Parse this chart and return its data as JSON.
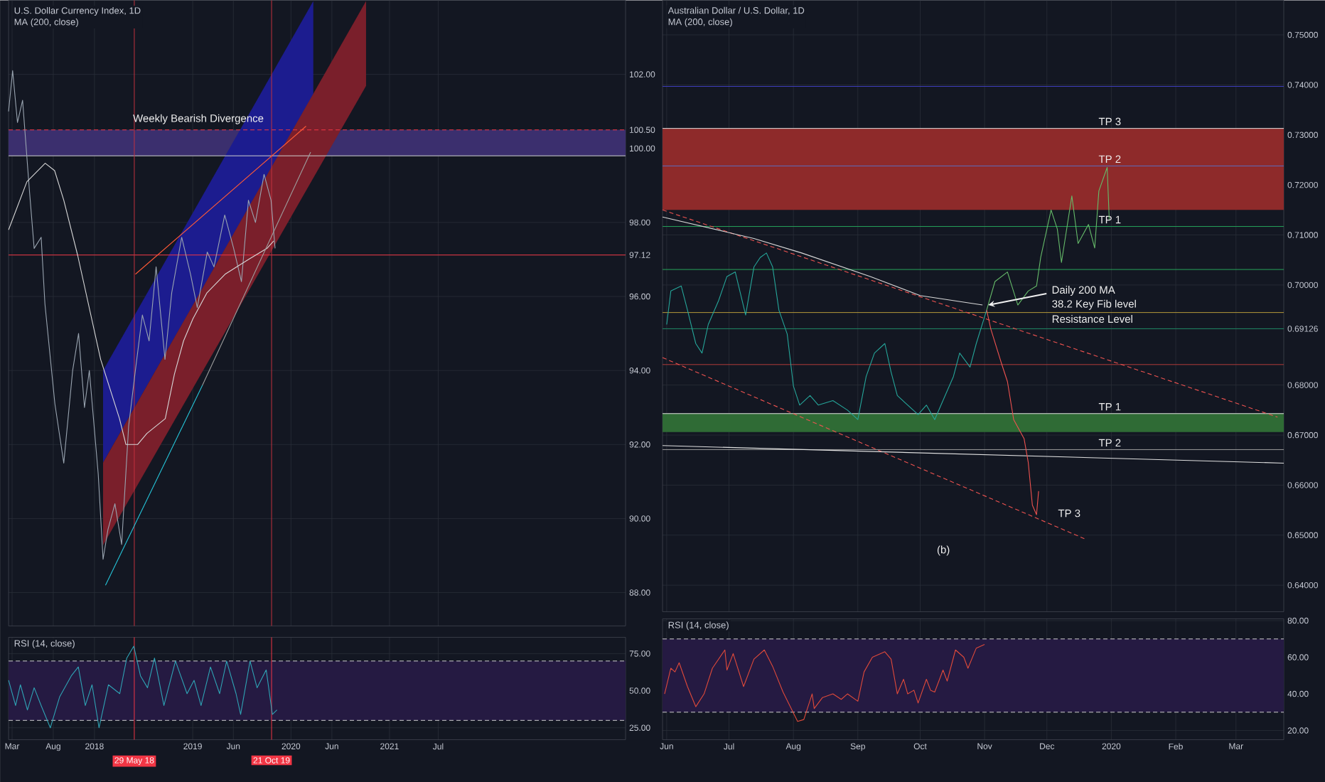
{
  "chart_data": [
    {
      "type": "line",
      "title": "U.S. Dollar Currency Index, 1D",
      "subtitle": "MA (200, close)",
      "xlim": [
        "2017-02-16",
        "2023-05-28"
      ],
      "ylim": [
        87.1,
        104
      ],
      "xticks": [
        {
          "value": "2017-03-01",
          "label": null
        },
        {
          "value": "2017-08-01",
          "label": null
        },
        {
          "value": "2018-01-01",
          "label": null
        },
        {
          "value": "2019-01-01",
          "label": null
        },
        {
          "value": "2019-06-01",
          "label": null
        },
        {
          "value": "2020-01-01",
          "label": null
        },
        {
          "value": "2020-06-01",
          "label": null
        },
        {
          "value": "2021-01-01",
          "label": null
        },
        {
          "value": "2021-07-01",
          "label": null
        }
      ],
      "yticks": [
        {
          "value": 88,
          "label": "88.00"
        },
        {
          "value": 90,
          "label": "90.00"
        },
        {
          "value": 92,
          "label": "92.00"
        },
        {
          "value": 94,
          "label": "94.00"
        },
        {
          "value": 96,
          "label": "96.00"
        },
        {
          "value": 97.12,
          "label": "97.12"
        },
        {
          "value": 98,
          "label": "98.00"
        },
        {
          "value": 100,
          "label": "100.00"
        },
        {
          "value": 100.5,
          "label": "100.50"
        },
        {
          "value": 102,
          "label": "102.00"
        }
      ],
      "tick_labels": "y",
      "grid": true,
      "bands": [
        {
          "axis": "y",
          "from": 99.8,
          "to": 100.5,
          "color": "#3b2f6e"
        }
      ],
      "ref_lines": [
        {
          "axis": "y",
          "value": 100.5,
          "color": "#f23645",
          "line_style": "dashed"
        },
        {
          "axis": "y",
          "value": 99.8,
          "color": "#d0d0d0"
        },
        {
          "axis": "y",
          "value": 97.12,
          "color": "#f23645"
        },
        {
          "axis": "x",
          "value": "2018-05-29",
          "color": "#c2323f"
        },
        {
          "axis": "x",
          "value": "2019-10-21",
          "color": "#c2323f"
        }
      ],
      "series": [
        {
          "color": "#1c1c8f",
          "x": [
            "2018-02-02",
            "2020-03-24"
          ],
          "values": [
            null,
            null
          ],
          "lower": [
            91.51,
            101.46
          ],
          "upper": [
            94.0,
            103.98
          ]
        },
        {
          "color": "#7a1f2b",
          "x": [
            "2018-02-02",
            "2020-10-06"
          ],
          "values": [
            null,
            null
          ],
          "lower": [
            89.28,
            101.69
          ],
          "upper": [
            91.51,
            103.98
          ]
        },
        {
          "color": "#9aa5b1",
          "x": [
            "2017-02-16",
            "2017-03-03",
            "2017-03-21",
            "2017-04-09",
            "2017-05-04",
            "2017-05-22",
            "2017-06-17",
            "2017-07-01",
            "2017-08-07",
            "2017-09-09",
            "2017-10-12",
            "2017-11-03",
            "2017-11-25",
            "2017-12-13",
            "2018-01-15",
            "2018-02-02",
            "2018-02-20",
            "2018-03-18",
            "2018-04-12",
            "2018-05-08",
            "2018-06-02",
            "2018-06-28",
            "2018-07-23",
            "2018-08-18",
            "2018-09-20",
            "2018-10-15",
            "2018-11-21",
            "2018-12-24",
            "2019-01-18",
            "2019-02-24",
            "2019-03-21",
            "2019-04-30",
            "2019-06-02",
            "2019-07-01",
            "2019-07-27",
            "2019-08-22",
            "2019-09-23",
            "2019-10-19",
            "2019-11-03"
          ],
          "values": [
            101.0,
            102.1,
            100.7,
            101.3,
            98.9,
            97.3,
            97.6,
            95.8,
            93.1,
            91.5,
            94.0,
            95.0,
            93.0,
            94.0,
            91.2,
            88.9,
            89.7,
            90.4,
            89.3,
            92.5,
            94.0,
            95.5,
            94.8,
            96.8,
            94.3,
            96.1,
            97.6,
            96.6,
            95.7,
            97.2,
            96.8,
            98.2,
            97.3,
            96.4,
            98.6,
            98.0,
            99.3,
            98.6,
            97.3
          ]
        },
        {
          "color": "#d8d8d8",
          "x": [
            "2017-02-16",
            "2017-04-25",
            "2017-07-02",
            "2017-08-06",
            "2017-09-09",
            "2017-10-31",
            "2018-01-24",
            "2018-04-04",
            "2018-04-28",
            "2018-06-10",
            "2018-07-15",
            "2018-09-21",
            "2018-10-25",
            "2018-11-28",
            "2019-01-02",
            "2019-02-23",
            "2019-05-01",
            "2019-07-27",
            "2019-10-04",
            "2019-10-29"
          ],
          "values": [
            97.8,
            99.1,
            99.6,
            99.4,
            98.6,
            97.1,
            94.3,
            92.7,
            92.0,
            92.0,
            92.3,
            92.7,
            93.9,
            94.8,
            95.4,
            96.1,
            96.6,
            97.0,
            97.3,
            97.5
          ]
        },
        {
          "color": "#ff5a36",
          "x": [
            "2018-06-02",
            "2020-02-26"
          ],
          "values": [
            96.6,
            100.6
          ]
        },
        {
          "color": "#26c6da",
          "x": [
            "2018-02-11",
            "2019-02-06"
          ],
          "values": [
            88.2,
            93.6
          ]
        },
        {
          "color": "#9e9e9e",
          "x": [
            "2019-02-06",
            "2020-03-14"
          ],
          "values": [
            93.6,
            99.9
          ]
        }
      ],
      "annotations": [
        "Weekly Bearish Divergence"
      ]
    },
    {
      "type": "line",
      "title": "RSI (14, close)",
      "xlim": [
        "2017-02-16",
        "2023-05-28"
      ],
      "ylim": [
        17,
        86
      ],
      "xticks": [
        {
          "value": "2017-03-01",
          "label": "Mar"
        },
        {
          "value": "2017-08-01",
          "label": "Aug"
        },
        {
          "value": "2018-01-01",
          "label": "2018"
        },
        {
          "value": "2019-01-01",
          "label": "2019"
        },
        {
          "value": "2019-06-01",
          "label": "Jun"
        },
        {
          "value": "2020-01-01",
          "label": "2020"
        },
        {
          "value": "2020-06-01",
          "label": "Jun"
        },
        {
          "value": "2021-01-01",
          "label": "2021"
        },
        {
          "value": "2021-07-01",
          "label": "Jul"
        }
      ],
      "yticks": [
        {
          "value": 25,
          "label": "25.00"
        },
        {
          "value": 50,
          "label": "50.00"
        },
        {
          "value": 75,
          "label": "75.00"
        }
      ],
      "grid": true,
      "bands": [
        {
          "axis": "y",
          "from": 30,
          "to": 70,
          "color": "#251a42"
        }
      ],
      "ref_lines": [
        {
          "axis": "y",
          "value": 70,
          "color": "#d0d0d0",
          "line_style": "dashed"
        },
        {
          "axis": "y",
          "value": 30,
          "color": "#d0d0d0",
          "line_style": "dashed"
        },
        {
          "axis": "x",
          "value": "2018-05-29",
          "label": "29 May 18",
          "color": "#f23645"
        },
        {
          "axis": "x",
          "value": "2019-10-21",
          "label": "21 Oct 19",
          "color": "#f23645"
        }
      ],
      "series": [
        {
          "color": "#2fa4b5",
          "x": [
            "2017-02-16",
            "2017-03-14",
            "2017-04-01",
            "2017-04-27",
            "2017-05-22",
            "2017-06-17",
            "2017-07-21",
            "2017-08-25",
            "2017-10-07",
            "2017-11-02",
            "2017-11-28",
            "2017-12-23",
            "2018-01-18",
            "2018-02-22",
            "2018-04-05",
            "2018-05-01",
            "2018-05-27",
            "2018-06-21",
            "2018-07-17",
            "2018-08-12",
            "2018-09-16",
            "2018-10-29",
            "2018-12-11",
            "2019-01-06",
            "2019-02-01",
            "2019-03-08",
            "2019-04-11",
            "2019-05-07",
            "2019-06-11",
            "2019-06-28",
            "2019-08-02",
            "2019-08-28",
            "2019-10-01",
            "2019-10-24",
            "2019-11-10"
          ],
          "values": [
            57,
            40,
            54,
            37,
            52,
            40,
            25,
            46,
            60,
            66,
            40,
            54,
            25,
            54,
            48,
            72,
            80,
            60,
            52,
            72,
            40,
            70,
            48,
            57,
            40,
            66,
            48,
            70,
            48,
            34,
            70,
            52,
            64,
            34,
            37
          ]
        }
      ]
    },
    {
      "type": "line",
      "title": "Australian Dollar / U.S. Dollar, 1D",
      "subtitle": "MA (200, close)",
      "xlim": [
        "2019-05-30",
        "2020-03-24"
      ],
      "ylim": [
        0.6347,
        0.7569
      ],
      "xticks": [
        {
          "value": "2019-06-01",
          "label": null
        },
        {
          "value": "2019-07-01",
          "label": null
        },
        {
          "value": "2019-08-01",
          "label": null
        },
        {
          "value": "2019-09-01",
          "label": null
        },
        {
          "value": "2019-10-01",
          "label": null
        },
        {
          "value": "2019-11-01",
          "label": null
        },
        {
          "value": "2019-12-01",
          "label": null
        },
        {
          "value": "2020-01-01",
          "label": null
        },
        {
          "value": "2020-02-01",
          "label": null
        },
        {
          "value": "2020-03-01",
          "label": null
        }
      ],
      "yticks": [
        {
          "value": 0.64,
          "label": "0.64000"
        },
        {
          "value": 0.65,
          "label": "0.65000"
        },
        {
          "value": 0.66,
          "label": "0.66000"
        },
        {
          "value": 0.67,
          "label": "0.67000"
        },
        {
          "value": 0.68,
          "label": "0.68000"
        },
        {
          "value": 0.69126,
          "label": "0.69126"
        },
        {
          "value": 0.7,
          "label": "0.70000"
        },
        {
          "value": 0.71,
          "label": "0.71000"
        },
        {
          "value": 0.72,
          "label": "0.72000"
        },
        {
          "value": 0.73,
          "label": "0.73000"
        },
        {
          "value": 0.74,
          "label": "0.74000"
        },
        {
          "value": 0.75,
          "label": "0.75000"
        }
      ],
      "tick_labels": "y",
      "grid": true,
      "bands": [
        {
          "axis": "y",
          "from": 0.715,
          "to": 0.7313,
          "color": "#8e2a2a"
        },
        {
          "axis": "y",
          "from": 0.6706,
          "to": 0.6743,
          "color": "#2f6b35"
        }
      ],
      "ref_lines": [
        {
          "axis": "y",
          "value": 0.7397,
          "color": "#3f3fbf"
        },
        {
          "axis": "y",
          "value": 0.7313,
          "label": "TP 3",
          "color": "#e0e0e0"
        },
        {
          "axis": "y",
          "value": 0.7238,
          "label": "TP 2",
          "color": "#5c6bc0"
        },
        {
          "axis": "y",
          "value": 0.7117,
          "label": "TP 1",
          "color": "#26a65b"
        },
        {
          "axis": "y",
          "value": 0.7031,
          "color": "#26a65b"
        },
        {
          "axis": "y",
          "value": 0.6945,
          "color": "#b59a3a"
        },
        {
          "axis": "y",
          "value": 0.69126,
          "color": "#1f8a64"
        },
        {
          "axis": "y",
          "value": 0.6841,
          "color": "#b23a3a"
        },
        {
          "axis": "y",
          "value": 0.6743,
          "label": "TP 1",
          "color": "#e0e0e0"
        },
        {
          "axis": "y",
          "value": 0.6671,
          "label": "TP 2",
          "color": "#9e9e9e"
        }
      ],
      "series": [
        {
          "color": "#ef5350",
          "line_style": "dashed",
          "x": [
            "2019-05-30",
            "2020-03-21"
          ],
          "values": [
            0.715,
            0.6736
          ]
        },
        {
          "color": "#ef5350",
          "line_style": "dashed",
          "x": [
            "2019-05-30",
            "2019-12-19"
          ],
          "values": [
            0.6855,
            0.6493
          ]
        },
        {
          "color": "#e0e0e0",
          "x": [
            "2019-05-30",
            "2020-03-24"
          ],
          "values": [
            0.6679,
            0.6644
          ]
        },
        {
          "color": "#d8d8d8",
          "x": [
            "2019-05-30",
            "2019-07-13",
            "2019-08-05",
            "2019-09-07",
            "2019-10-01",
            "2019-10-31"
          ],
          "values": [
            0.7136,
            0.7093,
            0.7064,
            0.7017,
            0.6979,
            0.696
          ]
        },
        {
          "color": "#26a69a",
          "x": [
            "2019-06-01",
            "2019-06-03",
            "2019-06-08",
            "2019-06-11",
            "2019-06-15",
            "2019-06-18",
            "2019-06-21",
            "2019-06-26",
            "2019-06-30",
            "2019-07-04",
            "2019-07-09",
            "2019-07-13",
            "2019-07-16",
            "2019-07-19",
            "2019-07-22",
            "2019-07-25",
            "2019-07-29",
            "2019-08-01",
            "2019-08-04",
            "2019-08-09",
            "2019-08-13",
            "2019-08-20",
            "2019-08-27",
            "2019-09-01",
            "2019-09-05",
            "2019-09-09",
            "2019-09-14",
            "2019-09-17",
            "2019-09-20",
            "2019-09-25",
            "2019-09-30",
            "2019-10-04",
            "2019-10-08",
            "2019-10-13",
            "2019-10-17",
            "2019-10-20",
            "2019-10-25",
            "2019-10-28",
            "2019-11-02"
          ],
          "values": [
            0.6921,
            0.6988,
            0.6998,
            0.695,
            0.6883,
            0.6864,
            0.6921,
            0.6969,
            0.7017,
            0.7026,
            0.694,
            0.7036,
            0.7055,
            0.7064,
            0.7036,
            0.695,
            0.6902,
            0.6798,
            0.676,
            0.6779,
            0.676,
            0.6769,
            0.675,
            0.6731,
            0.6817,
            0.6864,
            0.6883,
            0.6826,
            0.6779,
            0.676,
            0.6741,
            0.676,
            0.6731,
            0.6779,
            0.6817,
            0.6864,
            0.6836,
            0.6883,
            0.695
          ]
        },
        {
          "color": "#ef5350",
          "x": [
            "2019-11-02",
            "2019-11-04",
            "2019-11-09",
            "2019-11-12",
            "2019-11-15",
            "2019-11-20",
            "2019-11-22",
            "2019-11-24",
            "2019-11-26",
            "2019-11-27"
          ],
          "values": [
            0.695,
            0.6912,
            0.6845,
            0.6807,
            0.6731,
            0.6693,
            0.6646,
            0.656,
            0.6541,
            0.6588
          ]
        },
        {
          "color": "#66bb6a",
          "x": [
            "2019-11-02",
            "2019-11-06",
            "2019-11-12",
            "2019-11-17",
            "2019-11-22",
            "2019-11-26",
            "2019-11-28",
            "2019-12-03",
            "2019-12-06",
            "2019-12-08",
            "2019-12-13",
            "2019-12-16",
            "2019-12-21",
            "2019-12-24",
            "2019-12-26",
            "2019-12-30",
            "2019-12-31"
          ],
          "values": [
            0.695,
            0.7007,
            0.7026,
            0.696,
            0.6988,
            0.6998,
            0.7055,
            0.715,
            0.7112,
            0.7045,
            0.7178,
            0.7083,
            0.7121,
            0.7074,
            0.7188,
            0.7235,
            0.7131
          ]
        }
      ],
      "annotations": [
        {
          "text": "Daily 200 MA",
          "x": "2019-10-31",
          "y": 0.696
        },
        "38.2 Key Fib level",
        "Resistance Level",
        "TP 3",
        "(b)"
      ]
    },
    {
      "type": "line",
      "title": "RSI (14, close)",
      "xlim": [
        "2019-05-30",
        "2020-03-24"
      ],
      "ylim": [
        15,
        81
      ],
      "xticks": [
        {
          "value": "2019-06-01",
          "label": "Jun"
        },
        {
          "value": "2019-07-01",
          "label": "Jul"
        },
        {
          "value": "2019-08-01",
          "label": "Aug"
        },
        {
          "value": "2019-09-01",
          "label": "Sep"
        },
        {
          "value": "2019-10-01",
          "label": "Oct"
        },
        {
          "value": "2019-11-01",
          "label": "Nov"
        },
        {
          "value": "2019-12-01",
          "label": "Dec"
        },
        {
          "value": "2020-01-01",
          "label": "2020"
        },
        {
          "value": "2020-02-01",
          "label": "Feb"
        },
        {
          "value": "2020-03-01",
          "label": "Mar"
        }
      ],
      "yticks": [
        {
          "value": 20,
          "label": "20.00"
        },
        {
          "value": 40,
          "label": "40.00"
        },
        {
          "value": 60,
          "label": "60.00"
        },
        {
          "value": 80,
          "label": "80.00"
        }
      ],
      "grid": true,
      "bands": [
        {
          "axis": "y",
          "from": 30,
          "to": 70,
          "color": "#251a42"
        }
      ],
      "ref_lines": [
        {
          "axis": "y",
          "value": 70,
          "color": "#d0d0d0",
          "line_style": "dashed"
        },
        {
          "axis": "y",
          "value": 30,
          "color": "#d0d0d0",
          "line_style": "dashed"
        }
      ],
      "series": [
        {
          "color": "#e04a3a",
          "x": [
            "2019-05-31",
            "2019-06-03",
            "2019-06-05",
            "2019-06-07",
            "2019-06-11",
            "2019-06-15",
            "2019-06-19",
            "2019-06-23",
            "2019-06-29",
            "2019-06-30",
            "2019-07-03",
            "2019-07-08",
            "2019-07-13",
            "2019-07-18",
            "2019-07-22",
            "2019-07-27",
            "2019-08-03",
            "2019-08-06",
            "2019-08-10",
            "2019-08-11",
            "2019-08-15",
            "2019-08-20",
            "2019-08-24",
            "2019-08-27",
            "2019-09-01",
            "2019-09-04",
            "2019-09-08",
            "2019-09-14",
            "2019-09-17",
            "2019-09-20",
            "2019-09-23",
            "2019-09-25",
            "2019-09-28",
            "2019-09-30",
            "2019-10-04",
            "2019-10-06",
            "2019-10-08",
            "2019-10-12",
            "2019-10-14",
            "2019-10-18",
            "2019-10-22",
            "2019-10-24",
            "2019-10-28",
            "2019-11-01"
          ],
          "values": [
            40,
            54,
            52,
            57,
            44,
            33,
            40,
            54,
            64,
            53,
            62,
            44,
            59,
            64,
            55,
            41,
            25,
            26,
            40,
            32,
            38,
            40,
            37,
            40,
            36,
            52,
            60,
            63,
            59,
            40,
            48,
            40,
            42,
            35,
            48,
            42,
            41,
            53,
            47,
            64,
            60,
            54,
            65,
            67
          ]
        }
      ]
    }
  ]
}
